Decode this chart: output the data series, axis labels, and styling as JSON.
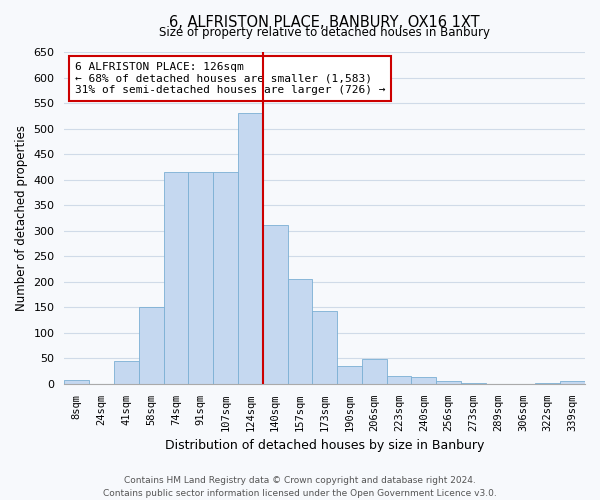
{
  "title": "6, ALFRISTON PLACE, BANBURY, OX16 1XT",
  "subtitle": "Size of property relative to detached houses in Banbury",
  "xlabel": "Distribution of detached houses by size in Banbury",
  "ylabel": "Number of detached properties",
  "footer_lines": [
    "Contains HM Land Registry data © Crown copyright and database right 2024.",
    "Contains public sector information licensed under the Open Government Licence v3.0."
  ],
  "bar_labels": [
    "8sqm",
    "24sqm",
    "41sqm",
    "58sqm",
    "74sqm",
    "91sqm",
    "107sqm",
    "124sqm",
    "140sqm",
    "157sqm",
    "173sqm",
    "190sqm",
    "206sqm",
    "223sqm",
    "240sqm",
    "256sqm",
    "273sqm",
    "289sqm",
    "306sqm",
    "322sqm",
    "339sqm"
  ],
  "bar_values": [
    8,
    0,
    44,
    150,
    415,
    415,
    415,
    530,
    312,
    205,
    143,
    35,
    48,
    15,
    13,
    5,
    2,
    0,
    0,
    2,
    5
  ],
  "bar_color": "#c5d8f0",
  "bar_edge_color": "#7bafd4",
  "highlight_index": 7,
  "highlight_line_color": "#cc0000",
  "ylim": [
    0,
    650
  ],
  "yticks": [
    0,
    50,
    100,
    150,
    200,
    250,
    300,
    350,
    400,
    450,
    500,
    550,
    600,
    650
  ],
  "annotation_title": "6 ALFRISTON PLACE: 126sqm",
  "annotation_line1": "← 68% of detached houses are smaller (1,583)",
  "annotation_line2": "31% of semi-detached houses are larger (726) →",
  "grid_color": "#d0dbe8",
  "background_color": "#f7f9fc",
  "bar_color_highlight": "#c5d8f0"
}
